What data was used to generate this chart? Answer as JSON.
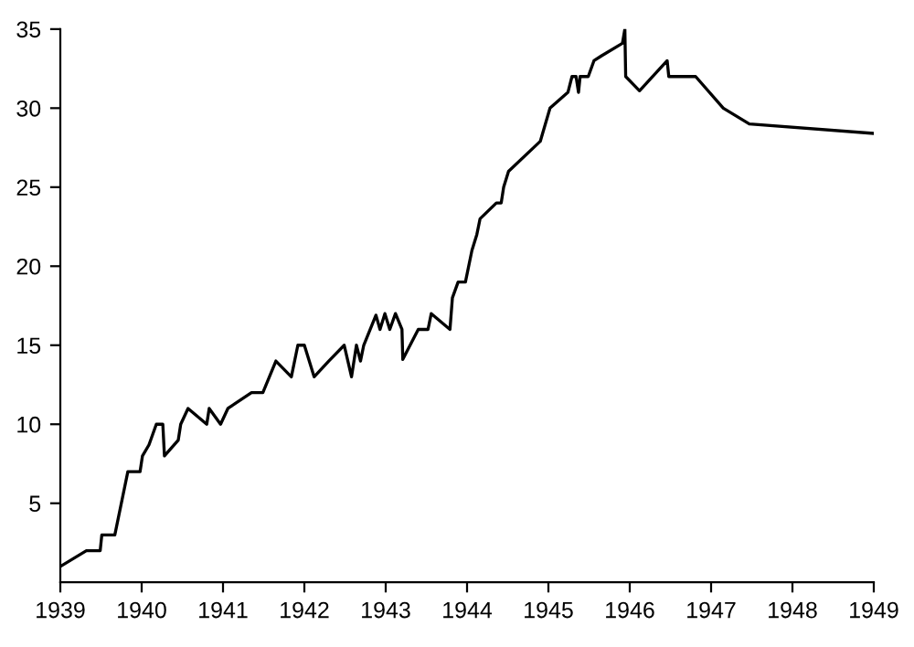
{
  "chart_data": {
    "type": "line",
    "xlim": [
      1939,
      1949
    ],
    "ylim": [
      0,
      35
    ],
    "xticks": [
      1939,
      1940,
      1941,
      1942,
      1943,
      1944,
      1945,
      1946,
      1947,
      1948,
      1949
    ],
    "yticks": [
      5,
      10,
      15,
      20,
      25,
      30,
      35
    ],
    "grid": false,
    "legend": false,
    "marker": "none",
    "line_style": "solid",
    "series": [
      {
        "color": "#000000",
        "x": [
          1939.0,
          1939.32,
          1939.49,
          1939.51,
          1939.67,
          1939.83,
          1939.98,
          1940.01,
          1940.09,
          1940.18,
          1940.26,
          1940.28,
          1940.45,
          1940.48,
          1940.57,
          1940.8,
          1940.83,
          1940.97,
          1941.06,
          1941.35,
          1941.49,
          1941.65,
          1941.84,
          1941.92,
          1942.0,
          1942.12,
          1942.3,
          1942.49,
          1942.58,
          1942.64,
          1942.69,
          1942.73,
          1942.88,
          1942.93,
          1942.99,
          1943.05,
          1943.12,
          1943.2,
          1943.21,
          1943.4,
          1943.52,
          1943.56,
          1943.79,
          1943.82,
          1943.89,
          1943.98,
          1944.06,
          1944.12,
          1944.16,
          1944.36,
          1944.42,
          1944.45,
          1944.51,
          1944.9,
          1945.02,
          1945.24,
          1945.29,
          1945.34,
          1945.37,
          1945.39,
          1945.49,
          1945.56,
          1945.65,
          1945.91,
          1945.94,
          1945.95,
          1946.12,
          1946.46,
          1946.48,
          1946.81,
          1947.15,
          1947.47,
          1949.0
        ],
        "values": [
          1,
          2,
          2,
          3,
          3,
          7,
          7,
          8,
          8.7,
          10,
          10,
          8,
          9,
          10,
          11,
          10,
          11,
          10,
          11,
          12,
          12,
          14,
          13,
          15,
          15,
          13,
          14,
          15,
          13,
          15,
          14,
          15,
          16.9,
          16,
          17,
          16,
          17,
          16,
          14.1,
          16,
          16,
          17,
          16,
          18,
          19,
          19,
          21,
          22,
          23,
          24,
          24,
          25,
          26,
          27.9,
          30,
          31,
          32,
          32,
          31,
          32,
          32,
          33,
          33.3,
          34.1,
          35,
          32,
          31.1,
          33,
          32,
          32,
          30,
          29,
          28.4
        ]
      }
    ]
  }
}
